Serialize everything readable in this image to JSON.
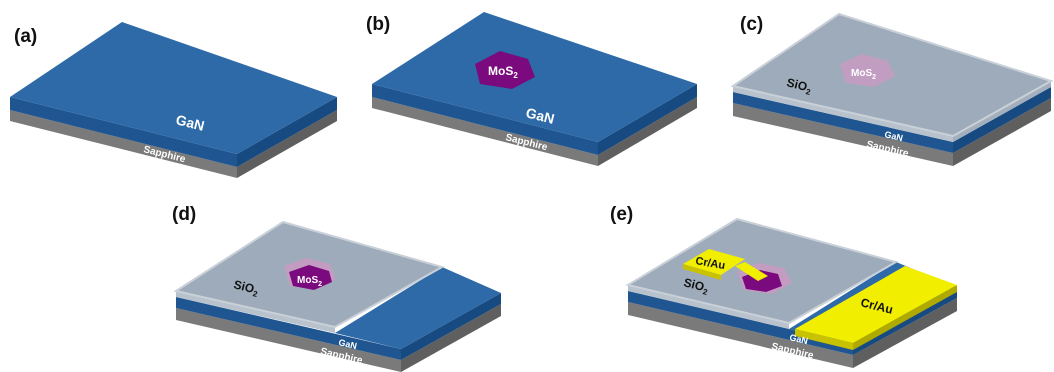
{
  "panels": [
    {
      "label": "(a)",
      "gan": "GaN",
      "sapphire": "Sapphire"
    },
    {
      "label": "(b)",
      "gan": "GaN",
      "sapphire": "Sapphire",
      "mos2": "MoS",
      "mos2_sub": "2"
    },
    {
      "label": "(c)",
      "gan": "GaN",
      "sapphire": "Sapphire",
      "mos2": "MoS",
      "mos2_sub": "2",
      "sio2": "SiO",
      "sio2_sub": "2"
    },
    {
      "label": "(d)",
      "gan": "GaN",
      "sapphire": "Sapphire",
      "mos2": "MoS",
      "mos2_sub": "2",
      "sio2": "SiO",
      "sio2_sub": "2"
    },
    {
      "label": "(e)",
      "gan": "GaN",
      "sapphire": "Sapphire",
      "sio2": "SiO",
      "sio2_sub": "2",
      "contact_left": "Cr/Au",
      "contact_right": "Cr/Au"
    }
  ],
  "colors": {
    "gan_top": "#2e6aa8",
    "gan_side": "#1f5590",
    "sapphire_side": "#7a7a7a",
    "sapphire_dark": "#5f5f5f",
    "sio2_top": "#9eabba",
    "sio2_edge": "#c9d0d8",
    "mos2": "#7b0a7e",
    "mos2_faded": "#c79bc2",
    "contact": "#f2ee00",
    "contact_side": "#c9c200"
  }
}
